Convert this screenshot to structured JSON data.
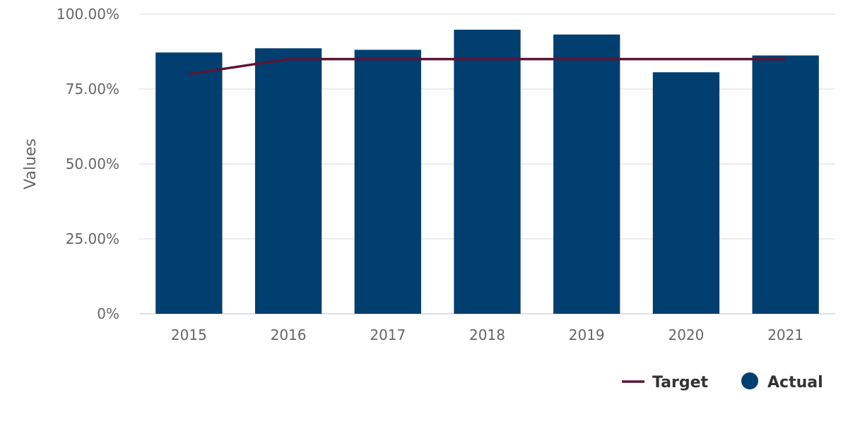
{
  "chart_data": {
    "type": "bar",
    "title": "",
    "xlabel": "",
    "ylabel": "Values",
    "categories": [
      "2015",
      "2016",
      "2017",
      "2018",
      "2019",
      "2020",
      "2021"
    ],
    "ylim": [
      0,
      100
    ],
    "yticks": [
      0,
      25,
      50,
      75,
      100
    ],
    "ytick_labels": [
      "0%",
      "25.00%",
      "50.00%",
      "75.00%",
      "100.00%"
    ],
    "grid": true,
    "legend_position": "bottom-right",
    "series": [
      {
        "name": "Actual",
        "kind": "bar",
        "color": "#003f6f",
        "values": [
          87.2,
          88.6,
          88.1,
          94.8,
          93.2,
          80.6,
          86.2
        ]
      },
      {
        "name": "Target",
        "kind": "line",
        "color": "#5c1536",
        "values": [
          80,
          85,
          85,
          85,
          85,
          85,
          85
        ]
      }
    ]
  }
}
